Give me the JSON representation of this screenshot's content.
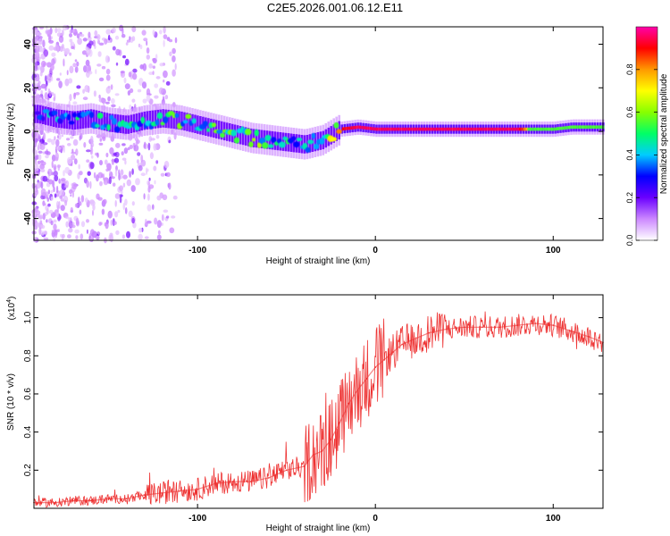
{
  "title": "C2E5.2026.001.06.12.E11",
  "chart_data": [
    {
      "type": "heatmap",
      "name": "spectrogram",
      "xlabel": "Height of straight line (km)",
      "ylabel": "Frequency (Hz)",
      "xlim": [
        -192,
        128
      ],
      "ylim": [
        -50,
        48
      ],
      "xticks": [
        -100,
        0,
        100
      ],
      "xtick_labels": [
        "-100",
        "0",
        "100"
      ],
      "yticks": [
        -40,
        -20,
        0,
        20,
        40
      ],
      "ytick_labels": [
        "-40",
        "-20",
        "0",
        "20",
        "40"
      ],
      "ridge_x": [
        -190,
        -180,
        -170,
        -160,
        -150,
        -140,
        -130,
        -120,
        -110,
        -100,
        -90,
        -80,
        -70,
        -60,
        -50,
        -40,
        -30,
        -20,
        -10,
        0,
        10,
        20,
        40,
        60,
        80,
        90,
        100,
        110,
        120,
        128
      ],
      "ridge_y": [
        8,
        6,
        5,
        6,
        4,
        3,
        5,
        6,
        5,
        3,
        1,
        -1,
        -3,
        -4,
        -5,
        -6,
        -4,
        1,
        2,
        1,
        1,
        1,
        1,
        1,
        1,
        1,
        1,
        2,
        2,
        2
      ],
      "ridge_amplitude": [
        0.35,
        0.4,
        0.45,
        0.4,
        0.45,
        0.45,
        0.4,
        0.5,
        0.5,
        0.5,
        0.5,
        0.5,
        0.55,
        0.5,
        0.45,
        0.45,
        0.5,
        0.9,
        0.95,
        0.95,
        0.95,
        0.95,
        0.95,
        0.95,
        0.95,
        0.55,
        0.55,
        0.55,
        0.55,
        0.55
      ],
      "colorbar": {
        "label": "Normalized spectral amplitude",
        "range": [
          0.0,
          1.0
        ],
        "ticks": [
          0.0,
          0.2,
          0.4,
          0.6,
          0.8
        ],
        "tick_labels": [
          "0.0",
          "0.2",
          "0.4",
          "0.6",
          "0.8"
        ],
        "colors": [
          "#ffffff",
          "#cc88ff",
          "#6a00ff",
          "#0000ff",
          "#00ccff",
          "#00ff66",
          "#88ff00",
          "#ffff00",
          "#ff9900",
          "#ff0000",
          "#ff00aa"
        ]
      }
    },
    {
      "type": "line",
      "name": "snr",
      "xlabel": "Height of straight line (km)",
      "ylabel": "SNR (10 * v/v)",
      "y_scale_label": "(x10",
      "y_scale_exp": "4",
      "y_scale_close": ")",
      "xlim": [
        -192,
        128
      ],
      "ylim": [
        0.0,
        1.12
      ],
      "xticks": [
        -100,
        0,
        100
      ],
      "xtick_labels": [
        "-100",
        "0",
        "100"
      ],
      "yticks": [
        0.2,
        0.4,
        0.6,
        0.8,
        1.0
      ],
      "ytick_labels": [
        "0.2",
        "0.4",
        "0.6",
        "0.8",
        "1.0"
      ],
      "color": "#ee3333",
      "x": [
        -192,
        -180,
        -170,
        -160,
        -150,
        -140,
        -130,
        -120,
        -110,
        -100,
        -90,
        -80,
        -70,
        -60,
        -50,
        -40,
        -35,
        -30,
        -25,
        -20,
        -15,
        -10,
        -5,
        0,
        5,
        10,
        15,
        20,
        30,
        40,
        50,
        60,
        70,
        80,
        90,
        100,
        110,
        120,
        128
      ],
      "y": [
        0.03,
        0.03,
        0.04,
        0.04,
        0.05,
        0.05,
        0.07,
        0.08,
        0.09,
        0.1,
        0.13,
        0.14,
        0.14,
        0.16,
        0.2,
        0.22,
        0.28,
        0.3,
        0.36,
        0.45,
        0.55,
        0.62,
        0.68,
        0.74,
        0.78,
        0.82,
        0.86,
        0.88,
        0.92,
        0.94,
        0.95,
        0.95,
        0.95,
        0.96,
        0.97,
        0.96,
        0.93,
        0.9,
        0.87
      ]
    }
  ]
}
